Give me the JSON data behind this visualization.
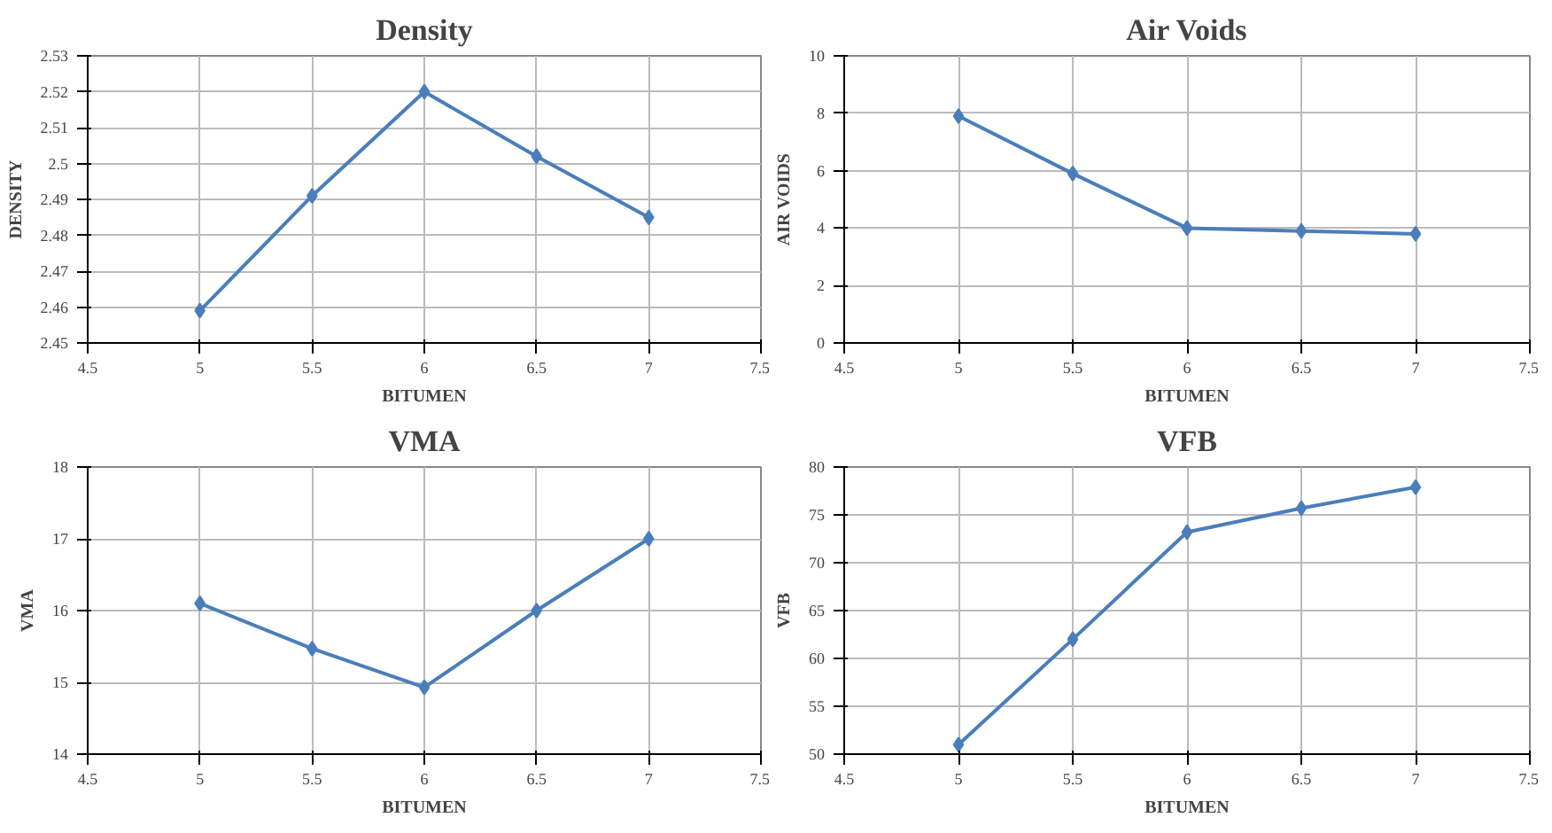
{
  "chart_data": [
    {
      "type": "line",
      "title": "Density",
      "xlabel": "BITUMEN",
      "ylabel": "DENSITY",
      "x": [
        5,
        5.5,
        6,
        6.5,
        7
      ],
      "series": [
        {
          "color": "#4a7ebb",
          "values": [
            2.459,
            2.491,
            2.52,
            2.502,
            2.485
          ]
        }
      ],
      "xlim": [
        4.5,
        7.5
      ],
      "xticks": [
        4.5,
        5,
        5.5,
        6,
        6.5,
        7,
        7.5
      ],
      "ylim": [
        2.45,
        2.53
      ],
      "yticks": [
        2.45,
        2.46,
        2.47,
        2.48,
        2.49,
        2.5,
        2.51,
        2.52,
        2.53
      ],
      "grid": true,
      "marker": "diamond",
      "line_style": "solid"
    },
    {
      "type": "line",
      "title": "Air Voids",
      "xlabel": "BITUMEN",
      "ylabel": "AIR VOIDS",
      "x": [
        5,
        5.5,
        6,
        6.5,
        7
      ],
      "series": [
        {
          "color": "#4a7ebb",
          "values": [
            7.9,
            5.9,
            4.0,
            3.9,
            3.8
          ]
        }
      ],
      "xlim": [
        4.5,
        7.5
      ],
      "xticks": [
        4.5,
        5,
        5.5,
        6,
        6.5,
        7,
        7.5
      ],
      "ylim": [
        0,
        10
      ],
      "yticks": [
        0,
        2,
        4,
        6,
        8,
        10
      ],
      "grid": true,
      "marker": "diamond",
      "line_style": "solid"
    },
    {
      "type": "line",
      "title": "VMA",
      "xlabel": "BITUMEN",
      "ylabel": "VMA",
      "x": [
        5,
        5.5,
        6,
        6.5,
        7
      ],
      "series": [
        {
          "color": "#4a7ebb",
          "values": [
            16.1,
            15.47,
            14.93,
            16.0,
            17.0
          ]
        }
      ],
      "xlim": [
        4.5,
        7.5
      ],
      "xticks": [
        4.5,
        5,
        5.5,
        6,
        6.5,
        7,
        7.5
      ],
      "ylim": [
        14,
        18
      ],
      "yticks": [
        14,
        15,
        16,
        17,
        18
      ],
      "grid": true,
      "marker": "diamond",
      "line_style": "solid"
    },
    {
      "type": "line",
      "title": "VFB",
      "xlabel": "BITUMEN",
      "ylabel": "VFB",
      "x": [
        5,
        5.5,
        6,
        6.5,
        7
      ],
      "series": [
        {
          "color": "#4a7ebb",
          "values": [
            51,
            62,
            73.2,
            75.7,
            77.9
          ]
        }
      ],
      "xlim": [
        4.5,
        7.5
      ],
      "xticks": [
        4.5,
        5,
        5.5,
        6,
        6.5,
        7,
        7.5
      ],
      "ylim": [
        50,
        80
      ],
      "yticks": [
        50,
        55,
        60,
        65,
        70,
        75,
        80
      ],
      "grid": true,
      "marker": "diamond",
      "line_style": "solid"
    }
  ]
}
